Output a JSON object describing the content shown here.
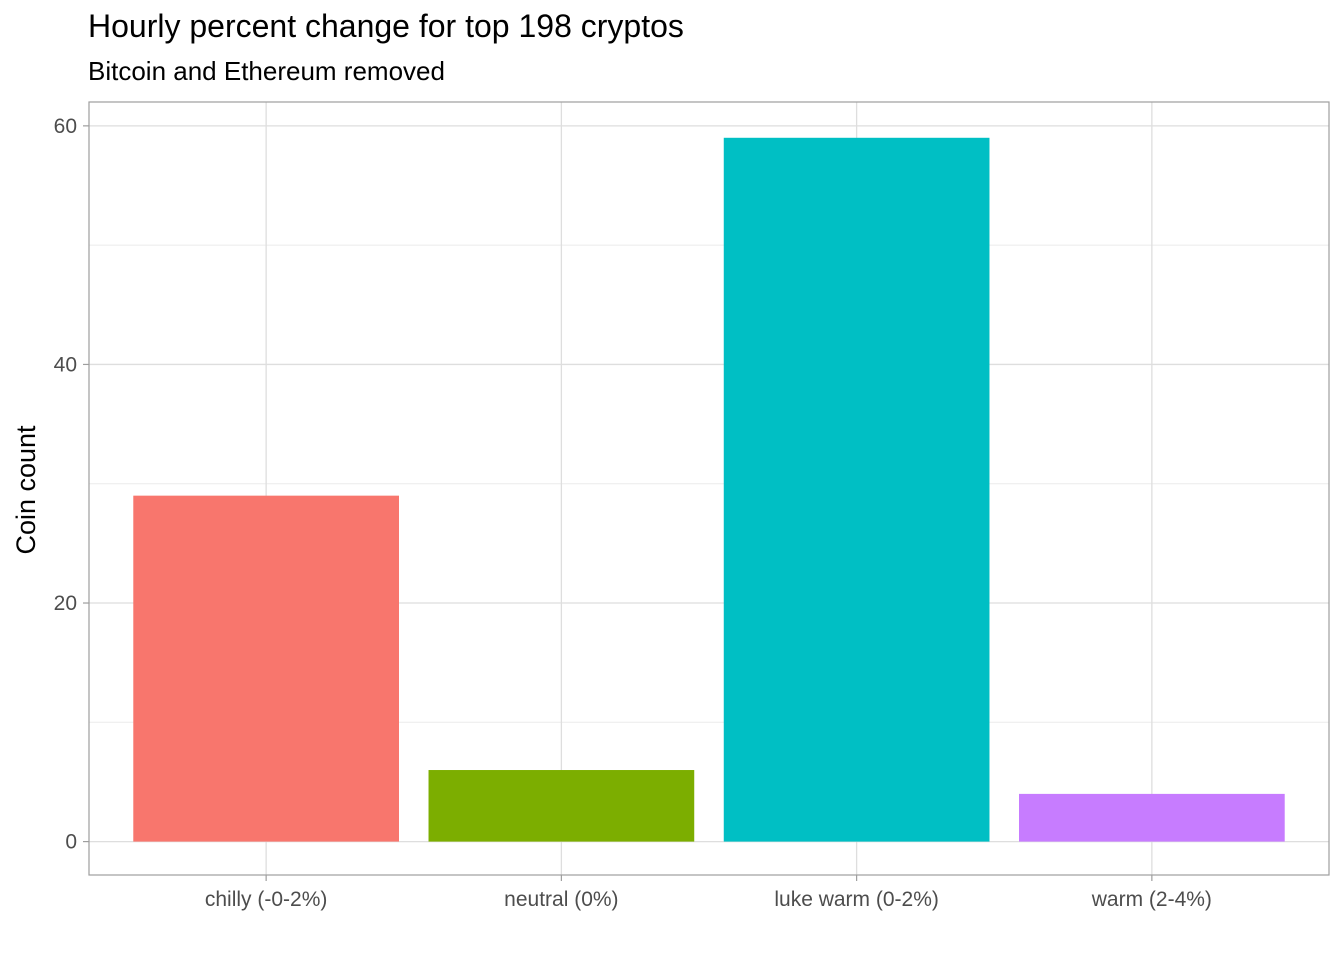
{
  "chart_data": {
    "type": "bar",
    "title": "Hourly percent change for top 198 cryptos",
    "subtitle": "Bitcoin and Ethereum removed",
    "xlabel": "",
    "ylabel": "Coin count",
    "categories": [
      "chilly (-0-2%)",
      "neutral (0%)",
      "luke warm (0-2%)",
      "warm (2-4%)"
    ],
    "values": [
      29,
      6,
      59,
      4
    ],
    "colors": [
      "#F8766D",
      "#7CAE00",
      "#00BFC4",
      "#C77CFF"
    ],
    "ylim": [
      -2.8,
      62
    ],
    "yticks": [
      0,
      20,
      40,
      60
    ],
    "grid": true,
    "legend": "none"
  }
}
